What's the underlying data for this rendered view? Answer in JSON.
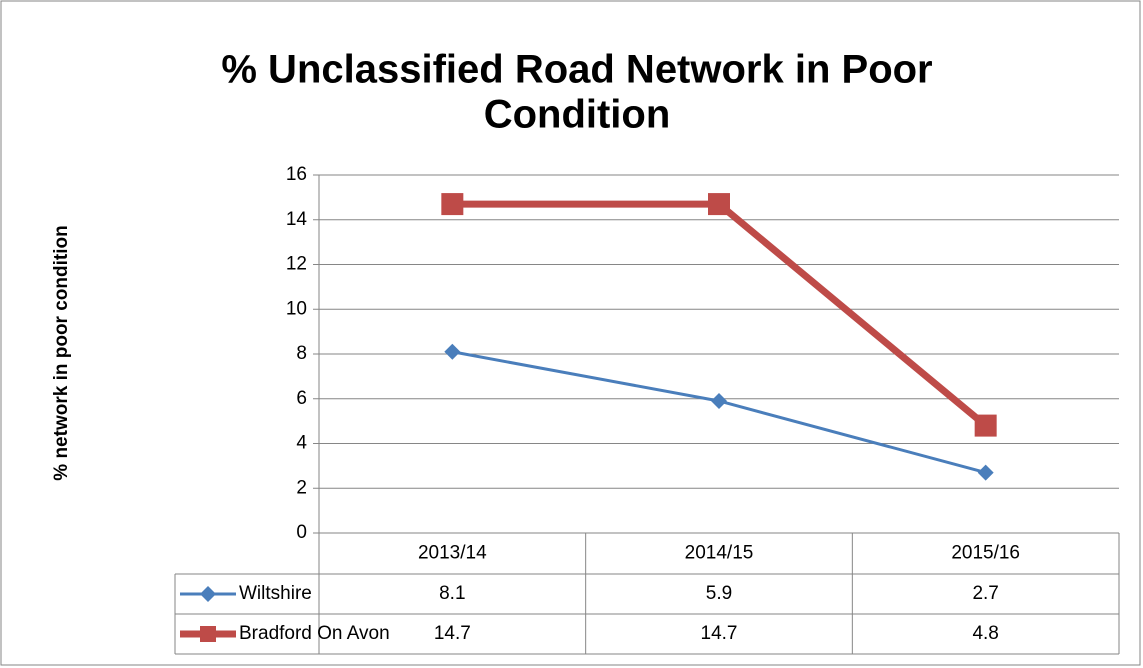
{
  "chart_data": {
    "type": "line",
    "title_lines": [
      "% Unclassified Road Network in Poor",
      "Condition"
    ],
    "y_label": "% network in poor condition",
    "categories": [
      "2013/14",
      "2014/15",
      "2015/16"
    ],
    "series": [
      {
        "name": "Wiltshire",
        "color": "#4a7ebb",
        "marker": "diamond",
        "values": [
          8.1,
          5.9,
          2.7
        ]
      },
      {
        "name": "Bradford On Avon",
        "color": "#be4b48",
        "marker": "square",
        "values": [
          14.7,
          14.7,
          4.8
        ]
      }
    ],
    "ylim": [
      0,
      16
    ],
    "yticks": [
      0,
      2,
      4,
      6,
      8,
      10,
      12,
      14,
      16
    ],
    "grid": true
  }
}
